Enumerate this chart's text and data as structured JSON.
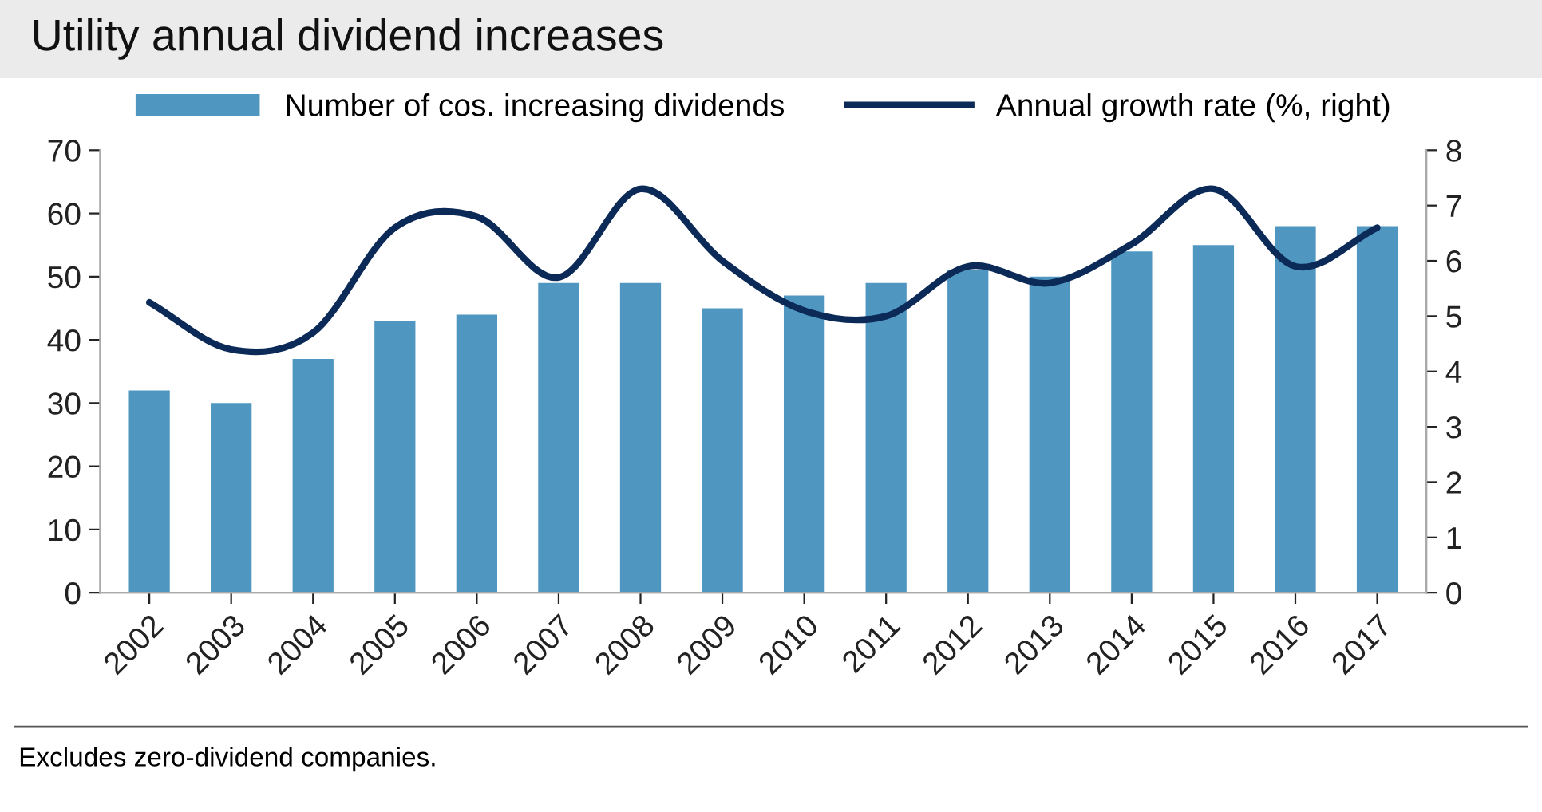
{
  "chart_data": {
    "type": "bar",
    "title": "Utility annual dividend increases",
    "categories": [
      "2002",
      "2003",
      "2004",
      "2005",
      "2006",
      "2007",
      "2008",
      "2009",
      "2010",
      "2011",
      "2012",
      "2013",
      "2014",
      "2015",
      "2016",
      "2017"
    ],
    "series": [
      {
        "name": "Number of cos. increasing dividends",
        "color": "#4f97c1",
        "values": [
          32,
          30,
          37,
          43,
          44,
          49,
          49,
          45,
          47,
          49,
          51,
          50,
          54,
          55,
          58,
          58
        ]
      },
      {
        "name": "Annual growth rate (%, right)",
        "type": "line",
        "axis": "y2",
        "color": "#0b2a57",
        "values": [
          5.25,
          4.4,
          4.7,
          6.6,
          6.8,
          5.7,
          7.3,
          6.0,
          5.1,
          5.0,
          5.9,
          5.6,
          6.3,
          7.3,
          5.9,
          6.6
        ]
      }
    ],
    "ylim": [
      0,
      70
    ],
    "yticks": [
      0,
      10,
      20,
      30,
      40,
      50,
      60,
      70
    ],
    "y2lim": [
      0,
      8
    ],
    "y2ticks": [
      0,
      1,
      2,
      3,
      4,
      5,
      6,
      7,
      8
    ],
    "legend": "top",
    "grid": false,
    "annotations": [
      "Excludes zero-dividend companies."
    ]
  }
}
